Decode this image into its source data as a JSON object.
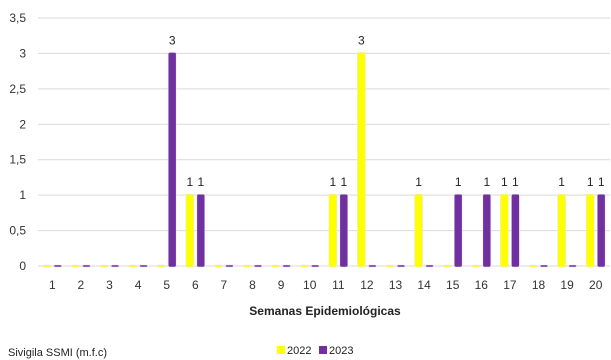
{
  "chart_data": {
    "type": "bar",
    "categories": [
      "1",
      "2",
      "3",
      "4",
      "5",
      "6",
      "7",
      "8",
      "9",
      "10",
      "11",
      "12",
      "13",
      "14",
      "15",
      "16",
      "17",
      "18",
      "19",
      "20"
    ],
    "series": [
      {
        "name": "2022",
        "color": "#ffff00",
        "values": [
          0,
          0,
          0,
          0,
          0,
          1,
          0,
          0,
          0,
          0,
          1,
          3,
          0,
          1,
          0,
          0,
          1,
          0,
          1,
          1
        ]
      },
      {
        "name": "2023",
        "color": "#7030a0",
        "values": [
          0,
          0,
          0,
          0,
          3,
          1,
          0,
          0,
          0,
          0,
          1,
          0,
          0,
          0,
          1,
          1,
          1,
          0,
          0,
          1
        ]
      }
    ],
    "xlabel": "Semanas Epidemiológicas",
    "ylabel": "",
    "ylim": [
      0,
      3.5
    ],
    "yticks": [
      0,
      0.5,
      1,
      1.5,
      2,
      2.5,
      3,
      3.5
    ],
    "ytick_labels": [
      "0",
      "0,5",
      "1",
      "1,5",
      "2",
      "2,5",
      "3",
      "3,5"
    ],
    "grid": true,
    "legend_position": "bottom"
  },
  "source_note": "Sivigila SSMI (m.f.c)"
}
